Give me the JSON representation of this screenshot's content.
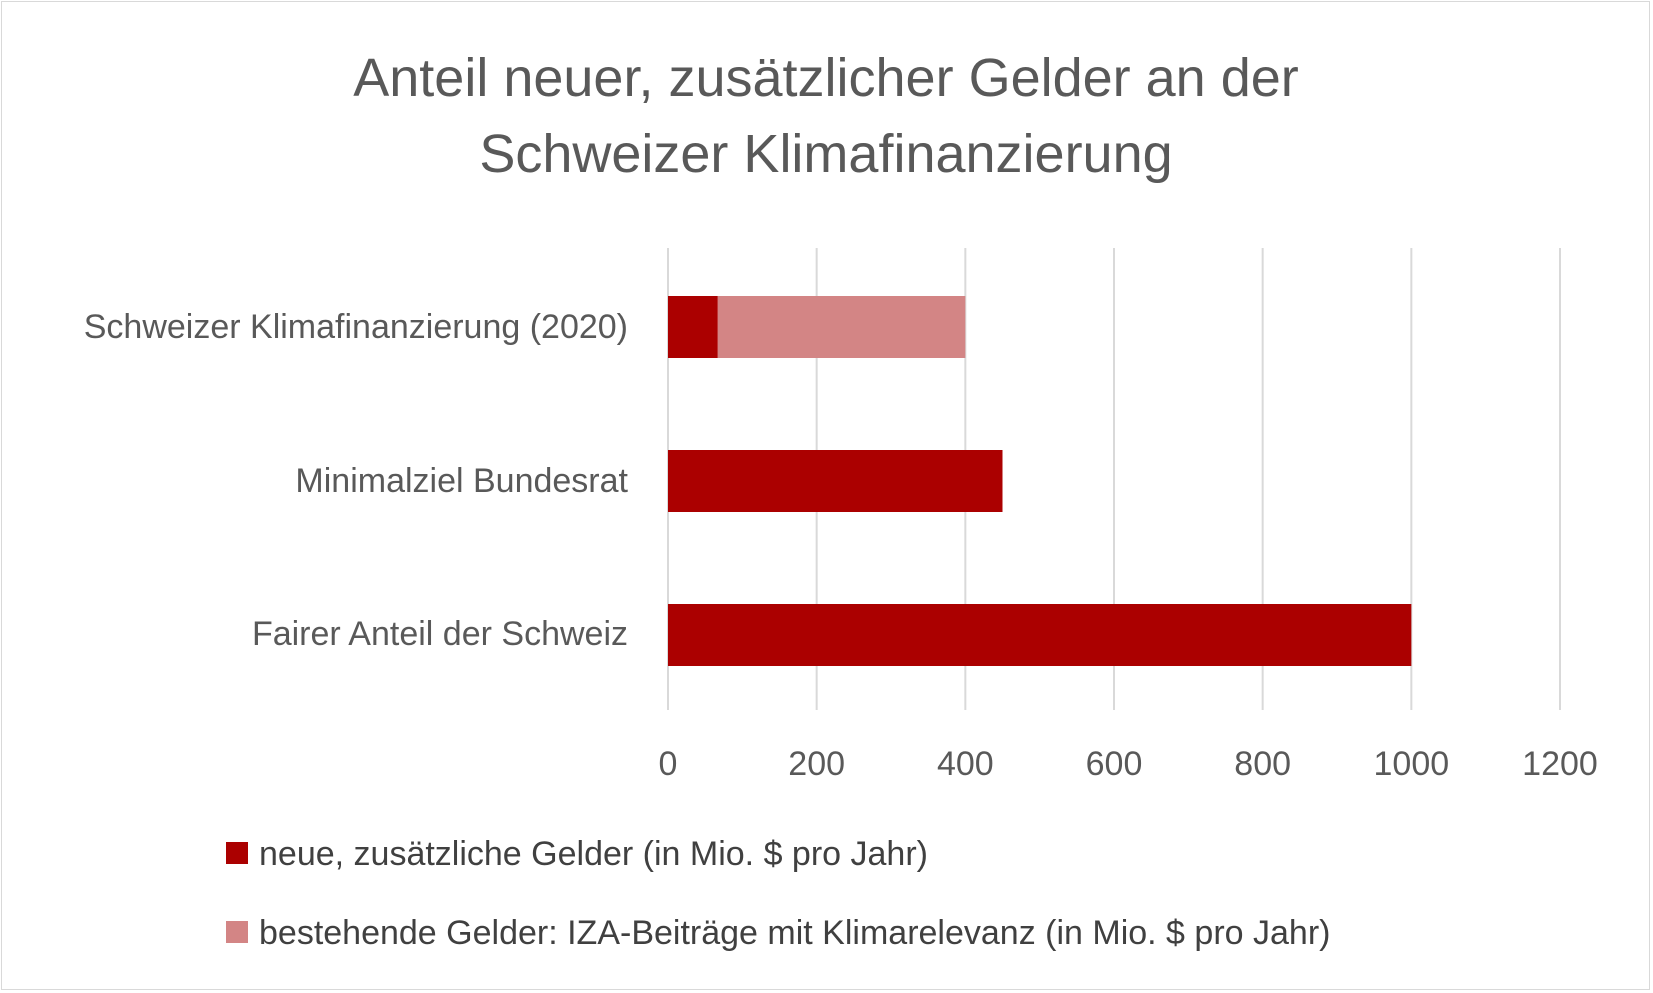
{
  "chart_data": {
    "type": "bar",
    "orientation": "horizontal",
    "stacked": true,
    "title_lines": [
      "Anteil neuer, zusätzlicher Gelder an der",
      "Schweizer Klimafinanzierung"
    ],
    "categories": [
      "Schweizer Klimafinanzierung (2020)",
      "Minimalziel Bundesrat",
      "Fairer Anteil der Schweiz"
    ],
    "series": [
      {
        "name": "neue, zusätzliche Gelder (in Mio. $ pro Jahr)",
        "values": [
          67,
          450,
          1000
        ],
        "color": "#ab0000"
      },
      {
        "name": "bestehende Gelder: IZA-Beiträge mit Klimarelevanz (in Mio. $ pro Jahr)",
        "values": [
          333,
          0,
          0
        ],
        "color": "#d38585"
      }
    ],
    "xlim": [
      0,
      1200
    ],
    "xticks": [
      "0",
      "200",
      "400",
      "600",
      "800",
      "1000",
      "1200"
    ],
    "grid": true,
    "legend_position": "bottom"
  }
}
